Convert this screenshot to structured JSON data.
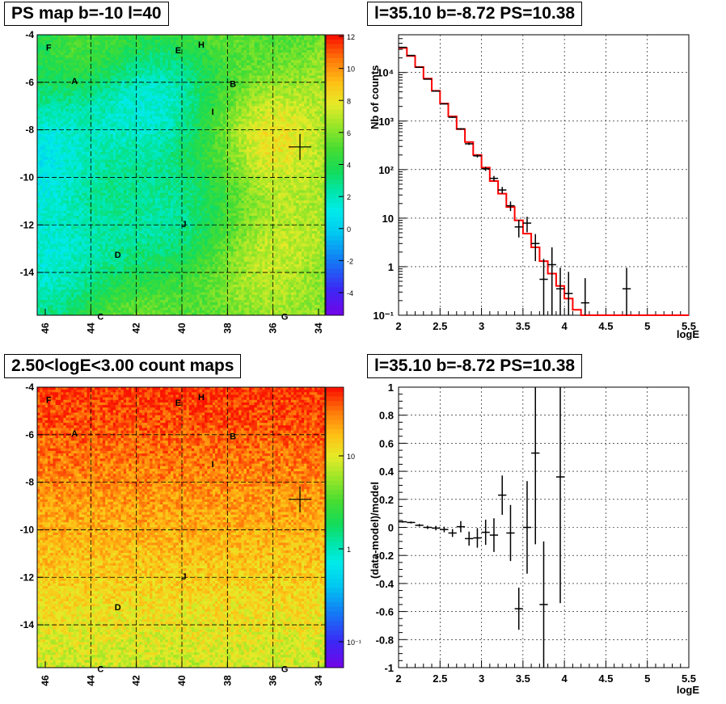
{
  "maps": [
    {
      "id": "ps-map",
      "title": "PS map b=-10 l=40",
      "colorscale": "ps",
      "x_ticks": [
        "46",
        "44",
        "42",
        "40",
        "38",
        "36",
        "34"
      ],
      "y_ticks": [
        "-4",
        "-6",
        "-8",
        "-10",
        "-12",
        "-14"
      ],
      "palette_ticks": [
        "12",
        "10",
        "8",
        "6",
        "4",
        "2",
        "0",
        "-2",
        "-4"
      ],
      "source_labels": [
        "F",
        "H",
        "E",
        "A",
        "B",
        "I",
        "J",
        "D",
        "C",
        "G"
      ]
    },
    {
      "id": "count-map",
      "title": "2.50<logE<3.00 count maps",
      "colorscale": "counts",
      "x_ticks": [
        "46",
        "44",
        "42",
        "40",
        "38",
        "36",
        "34"
      ],
      "y_ticks": [
        "-4",
        "-6",
        "-8",
        "-10",
        "-12",
        "-14"
      ],
      "palette_ticks": [
        "10",
        "1",
        "10⁻¹"
      ],
      "source_labels": [
        "F",
        "E",
        "H",
        "A",
        "B",
        "I",
        "J",
        "D",
        "C",
        "G"
      ]
    }
  ],
  "chart_data": [
    {
      "type": "line",
      "title": "l=35.10 b=-8.72 PS=10.38",
      "xlabel": "logE",
      "ylabel": "Nb of counts",
      "xlim": [
        2,
        5.5
      ],
      "ylim": [
        0.1,
        60000
      ],
      "yscale": "log",
      "grid": true,
      "x_tick_labels": [
        "2",
        "2.5",
        "3",
        "3.5",
        "4",
        "4.5",
        "5",
        "5.5"
      ],
      "y_tick_labels": [
        "10⁻¹",
        "1",
        "10",
        "10²",
        "10³",
        "10⁴"
      ],
      "series": [
        {
          "kind": "step",
          "color": "#ff0000",
          "x": [
            2.05,
            2.15,
            2.25,
            2.35,
            2.45,
            2.55,
            2.65,
            2.75,
            2.85,
            2.95,
            3.05,
            3.15,
            3.25,
            3.35,
            3.45,
            3.55,
            3.65,
            3.75,
            3.85,
            3.95,
            4.05,
            4.15,
            4.25,
            4.35,
            4.45,
            4.55,
            4.65,
            4.75,
            4.85,
            4.95,
            5.05,
            5.15,
            5.25,
            5.35,
            5.45
          ],
          "y": [
            32000,
            22000,
            13000,
            7500,
            4200,
            2300,
            1250,
            680,
            370,
            200,
            110,
            58,
            32,
            17,
            9,
            4.8,
            2.5,
            1.3,
            0.72,
            0.4,
            0.22,
            0.13,
            0.1,
            0.1,
            0.1,
            0.1,
            0.1,
            0.1,
            0.1,
            0.1,
            0.1,
            0.1,
            0.1,
            0.1,
            0.1
          ]
        },
        {
          "kind": "points",
          "color": "#000000",
          "x": [
            2.05,
            2.15,
            2.25,
            2.35,
            2.45,
            2.55,
            2.65,
            2.75,
            2.85,
            2.95,
            3.05,
            3.15,
            3.25,
            3.35,
            3.45,
            3.55,
            3.65,
            3.75,
            3.85,
            3.95,
            4.05,
            4.25,
            4.75
          ],
          "y": [
            33000,
            22500,
            12800,
            7300,
            4150,
            2260,
            1200,
            690,
            340,
            192,
            104,
            66,
            38,
            18,
            6.6,
            7.9,
            3.0,
            0.55,
            1.1,
            0.35,
            0.28,
            0.18,
            0.35
          ],
          "y_err_low": [
            180,
            150,
            110,
            85,
            64,
            47,
            35,
            26,
            18,
            14,
            10,
            8,
            6,
            4,
            2.6,
            2.8,
            1.7,
            0.55,
            1.05,
            0.35,
            0.28,
            0.18,
            0.35
          ],
          "y_err_high": [
            180,
            150,
            110,
            85,
            64,
            47,
            35,
            26,
            18,
            14,
            10,
            8,
            6,
            4,
            2.6,
            2.8,
            1.7,
            0.9,
            1.4,
            0.6,
            0.5,
            0.4,
            0.6
          ]
        }
      ]
    },
    {
      "type": "scatter",
      "title": "l=35.10 b=-8.72 PS=10.38",
      "xlabel": "logE",
      "ylabel": "(data-model)/model",
      "xlim": [
        2,
        5.5
      ],
      "ylim": [
        -1,
        1
      ],
      "grid": true,
      "x_tick_labels": [
        "2",
        "2.5",
        "3",
        "3.5",
        "4",
        "4.5",
        "5",
        "5.5"
      ],
      "y_tick_labels": [
        "1",
        "0.8",
        "0.6",
        "0.4",
        "0.2",
        "0",
        "-0.2",
        "-0.4",
        "-0.6",
        "-0.8",
        "-1"
      ],
      "series": [
        {
          "kind": "errorbar",
          "color": "#000000",
          "x": [
            2.05,
            2.15,
            2.25,
            2.35,
            2.45,
            2.55,
            2.65,
            2.75,
            2.85,
            2.95,
            3.05,
            3.15,
            3.25,
            3.35,
            3.45,
            3.55,
            3.65,
            3.75,
            3.95
          ],
          "y": [
            0.04,
            0.035,
            0.015,
            0.0,
            -0.005,
            -0.015,
            -0.04,
            0.005,
            -0.08,
            -0.075,
            -0.035,
            -0.055,
            0.23,
            -0.04,
            -0.58,
            0.0,
            0.53,
            -0.55,
            0.36
          ],
          "y_err": [
            0.006,
            0.007,
            0.009,
            0.012,
            0.016,
            0.02,
            0.028,
            0.04,
            0.05,
            0.07,
            0.09,
            0.12,
            0.14,
            0.2,
            0.15,
            0.33,
            0.65,
            0.45,
            0.9
          ]
        }
      ]
    }
  ]
}
